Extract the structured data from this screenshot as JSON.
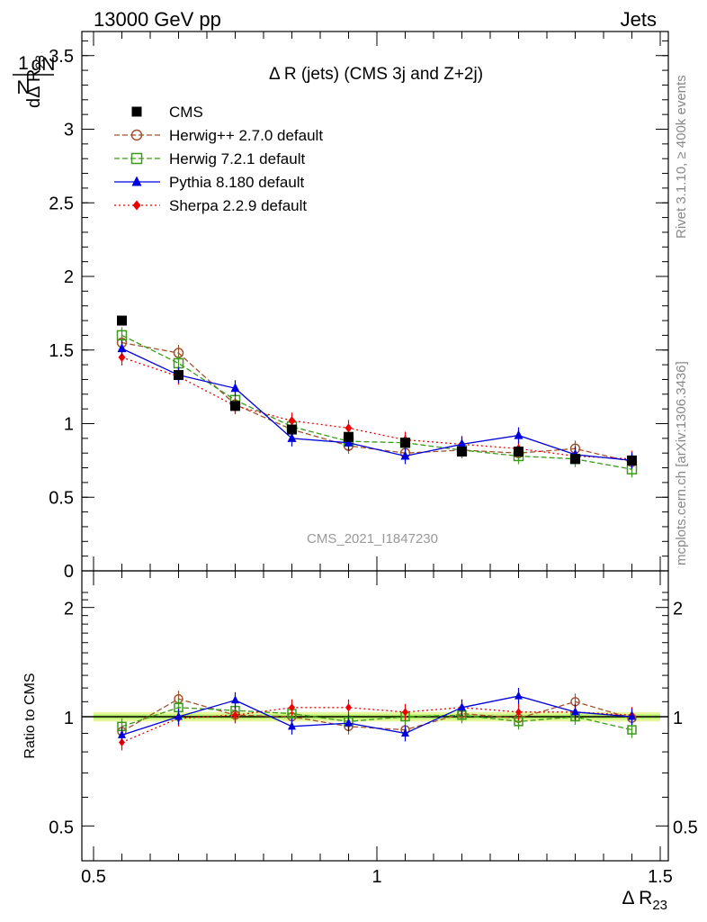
{
  "header": {
    "left": "13000 GeV pp",
    "right": "Jets"
  },
  "side_labels": {
    "rivet": "Rivet 3.1.10, ≥ 400k events",
    "mcplots": "mcplots.cern.ch [arXiv:1306.3436]"
  },
  "chart_data": {
    "type": "line",
    "title": "Δ R (jets) (CMS 3j and Z+2j)",
    "watermark": "CMS_2021_I1847230",
    "xlabel": "Δ R23",
    "ylabel_main": "1/N dN/dΔ R23",
    "ylabel_ratio": "Ratio to CMS",
    "xlim": [
      0.5,
      1.5
    ],
    "ylim_main": [
      0,
      3.7
    ],
    "ylim_ratio": [
      0.4,
      2.3
    ],
    "x_ticks": [
      "0.5",
      "1",
      "1.5"
    ],
    "y_ticks_main": [
      "0",
      "0.5",
      "1",
      "1.5",
      "2",
      "2.5",
      "3",
      "3.5"
    ],
    "y_ticks_ratio": [
      "0.5",
      "1",
      "2"
    ],
    "x": [
      0.55,
      0.65,
      0.75,
      0.85,
      0.95,
      1.05,
      1.15,
      1.25,
      1.35,
      1.45
    ],
    "legend_position": "top-left",
    "series": [
      {
        "name": "CMS",
        "color": "#000000",
        "marker": "filled-square",
        "line": "none",
        "values": [
          1.7,
          1.33,
          1.12,
          0.96,
          0.91,
          0.87,
          0.81,
          0.81,
          0.76,
          0.75
        ],
        "ratio": [
          1.0,
          1.0,
          1.0,
          1.0,
          1.0,
          1.0,
          1.0,
          1.0,
          1.0,
          1.0
        ]
      },
      {
        "name": "Herwig++ 2.7.0 default",
        "color": "#a0522d",
        "marker": "open-circle",
        "line": "dashed",
        "values": [
          1.55,
          1.48,
          1.13,
          0.96,
          0.85,
          0.8,
          0.82,
          0.8,
          0.83,
          0.74
        ],
        "ratio": [
          0.91,
          1.12,
          1.01,
          1.0,
          0.94,
          0.92,
          1.02,
          0.99,
          1.1,
          0.99
        ]
      },
      {
        "name": "Herwig 7.2.1 default",
        "color": "#3a9a1a",
        "marker": "open-square",
        "line": "dashed",
        "values": [
          1.6,
          1.41,
          1.16,
          0.98,
          0.88,
          0.87,
          0.82,
          0.78,
          0.76,
          0.69
        ],
        "ratio": [
          0.94,
          1.06,
          1.04,
          1.02,
          0.97,
          1.0,
          1.01,
          0.97,
          1.0,
          0.92
        ]
      },
      {
        "name": "Pythia 8.180 default",
        "color": "#0000dd",
        "marker": "filled-triangle",
        "line": "solid",
        "values": [
          1.51,
          1.33,
          1.24,
          0.9,
          0.87,
          0.78,
          0.86,
          0.92,
          0.79,
          0.75
        ],
        "ratio": [
          0.89,
          1.0,
          1.11,
          0.94,
          0.96,
          0.9,
          1.06,
          1.14,
          1.03,
          1.0
        ]
      },
      {
        "name": "Sherpa 2.2.9 default",
        "color": "#ee0000",
        "marker": "filled-diamond",
        "line": "dotted",
        "values": [
          1.45,
          1.32,
          1.12,
          1.02,
          0.97,
          0.89,
          0.86,
          0.83,
          0.78,
          0.76
        ],
        "ratio": [
          0.85,
          0.99,
          1.01,
          1.06,
          1.06,
          1.03,
          1.06,
          1.03,
          1.03,
          1.01
        ]
      }
    ]
  }
}
